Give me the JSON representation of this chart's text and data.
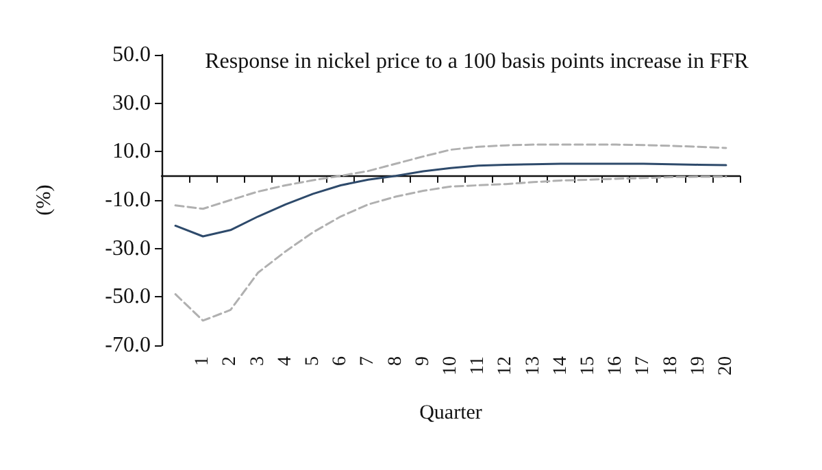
{
  "chart_data": {
    "type": "line",
    "title": "Response in nickel price to a 100 basis points increase in FFR",
    "xlabel": "Quarter",
    "ylabel": "(%)",
    "categories": [
      null,
      "1",
      "2",
      "3",
      "4",
      "5",
      "6",
      "7",
      "8",
      "9",
      "10",
      "11",
      "12",
      "13",
      "14",
      "15",
      "16",
      "17",
      "18",
      "19",
      "20"
    ],
    "series": [
      {
        "color": "#b0b0b0",
        "line_style": "dashed",
        "values": [
          -12.2,
          -13.6,
          -10,
          -6.5,
          -3.9,
          -1.8,
          0,
          2,
          5,
          8,
          10.8,
          12,
          12.6,
          12.9,
          12.9,
          12.9,
          12.9,
          12.7,
          12.4,
          12,
          11.5
        ]
      },
      {
        "color": "#2e4a6b",
        "line_style": "solid",
        "values": [
          -20.6,
          -25,
          -22.4,
          -16.8,
          -11.8,
          -7.4,
          -3.9,
          -1.6,
          0,
          1.9,
          3.2,
          4.2,
          4.6,
          4.8,
          5,
          5,
          5,
          5,
          4.8,
          4.6,
          4.4
        ]
      },
      {
        "color": "#b0b0b0",
        "line_style": "dashed",
        "values": [
          -48.9,
          -59.8,
          -55.4,
          -40,
          -31.2,
          -23.3,
          -16.8,
          -11.8,
          -8.6,
          -6.2,
          -4.4,
          -3.9,
          -3.4,
          -2.6,
          -1.9,
          -1.6,
          -1.2,
          -0.9,
          -0.5,
          -0.4,
          -0.4
        ]
      }
    ],
    "ylim": [
      -70,
      50
    ],
    "yticks": [
      {
        "value": -70,
        "label": "-70.0"
      },
      {
        "value": -50,
        "label": "-50.0"
      },
      {
        "value": -30,
        "label": "-30.0"
      },
      {
        "value": -10,
        "label": "-10.0"
      },
      {
        "value": 10,
        "label": "10.0"
      },
      {
        "value": 30,
        "label": "30.0"
      },
      {
        "value": 50,
        "label": "50.0"
      }
    ],
    "grid": false,
    "marker": "none"
  }
}
